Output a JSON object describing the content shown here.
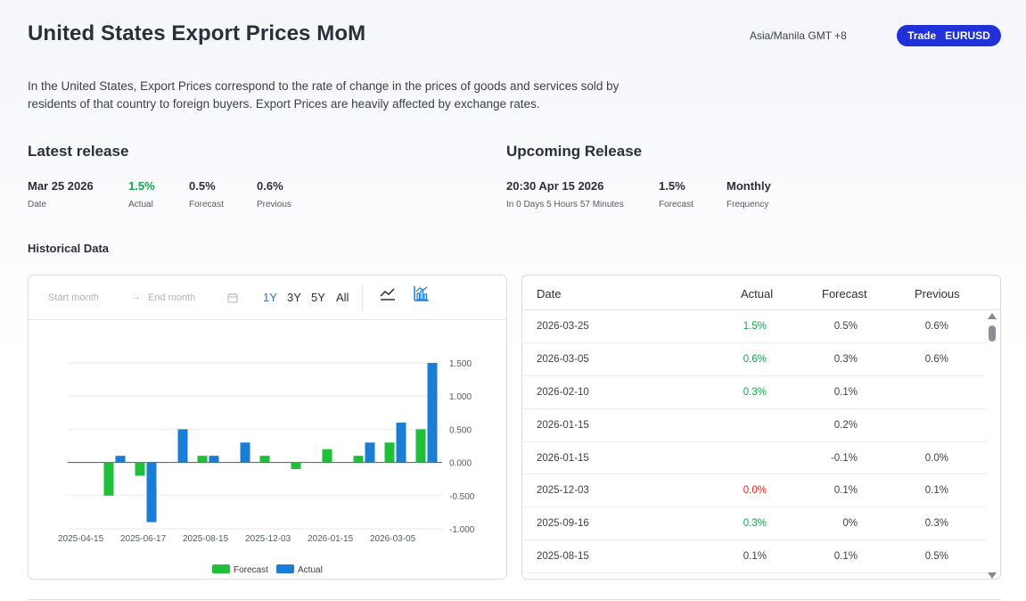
{
  "header": {
    "title": "United States Export Prices MoM",
    "timezone": "Asia/Manila GMT +8",
    "trade_label": "Trade",
    "trade_symbol": "EURUSD"
  },
  "description": "In the United States, Export Prices correspond to the rate of change in the prices of goods and services sold by residents of that country to foreign buyers. Export Prices are heavily affected by exchange rates.",
  "latest": {
    "heading": "Latest release",
    "date_value": "Mar 25 2026",
    "date_label": "Date",
    "actual_value": "1.5%",
    "actual_label": "Actual",
    "forecast_value": "0.5%",
    "forecast_label": "Forecast",
    "previous_value": "0.6%",
    "previous_label": "Previous"
  },
  "upcoming": {
    "heading": "Upcoming Release",
    "time_value": "20:30 Apr 15 2026",
    "time_label": "In 0 Days 5 Hours 57 Minutes",
    "forecast_value": "1.5%",
    "forecast_label": "Forecast",
    "frequency_value": "Monthly",
    "frequency_label": "Frequency"
  },
  "historical": {
    "heading": "Historical Data",
    "start_placeholder": "Start month",
    "end_placeholder": "End month",
    "arrow": "→",
    "ranges": [
      "1Y",
      "3Y",
      "5Y",
      "All"
    ],
    "active_range": "1Y"
  },
  "colors": {
    "forecast": "#1fbf3a",
    "actual": "#1b7ed6",
    "accent": "#2131d8",
    "positive": "#16a34a",
    "negative": "#e02424"
  },
  "chart_data": {
    "type": "bar",
    "x_tick_labels": [
      "2025-04-15",
      "2025-06-17",
      "2025-08-15",
      "2025-12-03",
      "2026-01-15",
      "2026-03-05"
    ],
    "y_tick_labels": [
      "1.500",
      "1.000",
      "0.500",
      "0.000",
      "-0.500",
      "-1.000"
    ],
    "ylim": [
      -1.0,
      1.5
    ],
    "grid": true,
    "legend_placement": "bottom-center",
    "series": [
      {
        "name": "Forecast",
        "values": [
          null,
          -0.5,
          -0.2,
          null,
          0.1,
          null,
          0.1,
          -0.1,
          0.2,
          0.1,
          0.3,
          0.5
        ]
      },
      {
        "name": "Actual",
        "values": [
          null,
          0.1,
          -0.9,
          0.5,
          0.1,
          0.3,
          null,
          null,
          null,
          0.3,
          0.6,
          1.5
        ]
      }
    ]
  },
  "table": {
    "headers": [
      "Date",
      "Actual",
      "Forecast",
      "Previous"
    ],
    "rows": [
      {
        "date": "2026-03-25",
        "actual": "1.5%",
        "actual_tone": "positive",
        "forecast": "0.5%",
        "previous": "0.6%"
      },
      {
        "date": "2026-03-05",
        "actual": "0.6%",
        "actual_tone": "positive",
        "forecast": "0.3%",
        "previous": "0.6%"
      },
      {
        "date": "2026-02-10",
        "actual": "0.3%",
        "actual_tone": "positive",
        "forecast": "0.1%",
        "previous": ""
      },
      {
        "date": "2026-01-15",
        "actual": "",
        "actual_tone": "",
        "forecast": "0.2%",
        "previous": ""
      },
      {
        "date": "2026-01-15",
        "actual": "",
        "actual_tone": "",
        "forecast": "-0.1%",
        "previous": "0.0%"
      },
      {
        "date": "2025-12-03",
        "actual": "0.0%",
        "actual_tone": "negative",
        "forecast": "0.1%",
        "previous": "0.1%"
      },
      {
        "date": "2025-09-16",
        "actual": "0.3%",
        "actual_tone": "positive",
        "forecast": "0%",
        "previous": "0.3%"
      },
      {
        "date": "2025-08-15",
        "actual": "0.1%",
        "actual_tone": "",
        "forecast": "0.1%",
        "previous": "0.5%"
      }
    ]
  }
}
